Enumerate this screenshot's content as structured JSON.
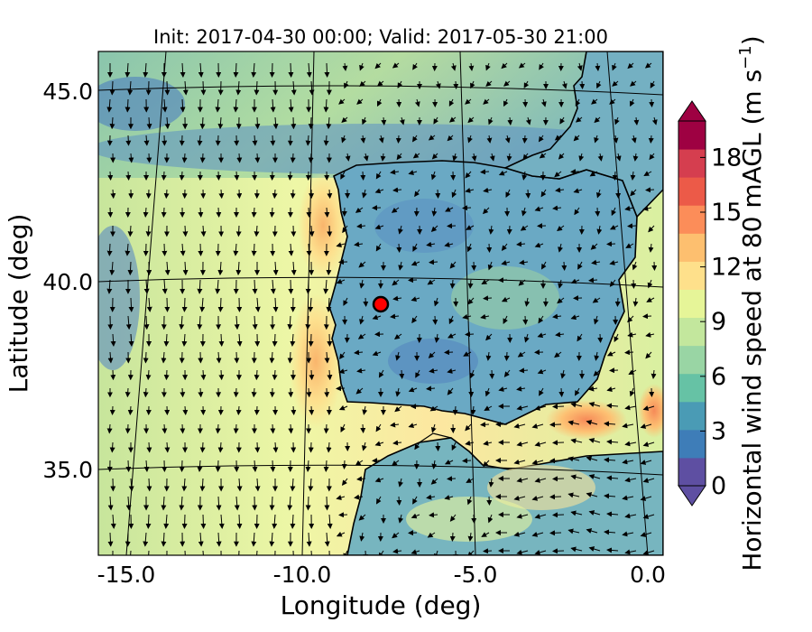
{
  "title": "Init: 2017-04-30 00:00; Valid: 2017-05-30 21:00",
  "xlabel": "Longitude (deg)",
  "ylabel": "Latitude (deg)",
  "xticks": [
    "-15.0",
    "-10.0",
    "-5.0",
    "0.0"
  ],
  "yticks": [
    "45.0",
    "40.0",
    "35.0"
  ],
  "colorbar": {
    "label": "Horizontal wind speed at 80 mAGL (m s",
    "label_sup": "−1",
    "label_close": ")",
    "ticks": [
      "0",
      "3",
      "6",
      "9",
      "12",
      "15",
      "18"
    ],
    "range": [
      0,
      20
    ],
    "extend": "both",
    "colormap": "Spectral_r",
    "colors": [
      "#5e4fa2",
      "#3e7db8",
      "#4a9bb5",
      "#66c2a5",
      "#99d5a4",
      "#c3e79d",
      "#e6f598",
      "#fee08b",
      "#fdbf6f",
      "#fc8d59",
      "#ec5a48",
      "#d53e4f",
      "#9e0142"
    ]
  },
  "map": {
    "lon_range": [
      -15.9,
      0.2
    ],
    "lat_range": [
      32.7,
      46.1
    ],
    "meridians": [
      -15,
      -10,
      -5,
      0
    ],
    "parallels": [
      35,
      40,
      45
    ],
    "site_marker": {
      "lon": -7.6,
      "lat": 39.3,
      "color": "#ff0000"
    },
    "land_color": "#5f9fc4",
    "ocean_color": "#cbe9a0",
    "coastline_color": "#000000"
  }
}
